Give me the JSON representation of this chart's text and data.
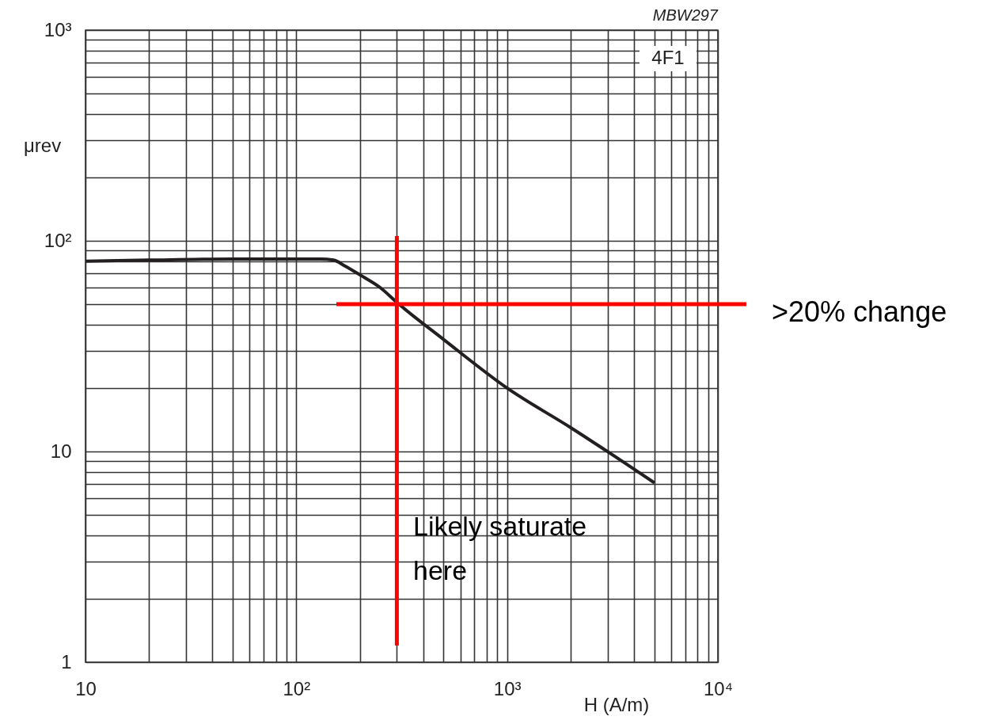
{
  "chart_data": {
    "type": "line",
    "title": "MBW297",
    "xlabel": "H  (A/m)",
    "ylabel": "μrev",
    "log": "xy",
    "grid": true,
    "legend": false,
    "marker": "none",
    "line_style": "solid",
    "xlim": [
      10,
      10000
    ],
    "ylim": [
      1,
      1000
    ],
    "xticks": [
      10,
      {
        "value": 20,
        "label": null
      },
      {
        "value": 30,
        "label": null
      },
      {
        "value": 40,
        "label": null
      },
      {
        "value": 50,
        "label": null
      },
      {
        "value": 60,
        "label": null
      },
      {
        "value": 70,
        "label": null
      },
      {
        "value": 80,
        "label": null
      },
      {
        "value": 90,
        "label": null
      },
      {
        "value": 100,
        "label": "10²"
      },
      {
        "value": 200,
        "label": null
      },
      {
        "value": 300,
        "label": null
      },
      {
        "value": 400,
        "label": null
      },
      {
        "value": 500,
        "label": null
      },
      {
        "value": 600,
        "label": null
      },
      {
        "value": 700,
        "label": null
      },
      {
        "value": 800,
        "label": null
      },
      {
        "value": 900,
        "label": null
      },
      {
        "value": 1000,
        "label": "10³"
      },
      {
        "value": 2000,
        "label": null
      },
      {
        "value": 3000,
        "label": null
      },
      {
        "value": 4000,
        "label": null
      },
      {
        "value": 5000,
        "label": null
      },
      {
        "value": 6000,
        "label": null
      },
      {
        "value": 7000,
        "label": null
      },
      {
        "value": 8000,
        "label": null
      },
      {
        "value": 9000,
        "label": null
      },
      {
        "value": 10000,
        "label": "10⁴"
      }
    ],
    "yticks": [
      1,
      {
        "value": 2,
        "label": null
      },
      {
        "value": 3,
        "label": null
      },
      {
        "value": 4,
        "label": null
      },
      {
        "value": 5,
        "label": null
      },
      {
        "value": 6,
        "label": null
      },
      {
        "value": 7,
        "label": null
      },
      {
        "value": 8,
        "label": null
      },
      {
        "value": 9,
        "label": null
      },
      10,
      {
        "value": 20,
        "label": null
      },
      {
        "value": 30,
        "label": null
      },
      {
        "value": 40,
        "label": null
      },
      {
        "value": 50,
        "label": null
      },
      {
        "value": 60,
        "label": null
      },
      {
        "value": 70,
        "label": null
      },
      {
        "value": 80,
        "label": null
      },
      {
        "value": 90,
        "label": null
      },
      {
        "value": 100,
        "label": "10²"
      },
      {
        "value": 200,
        "label": null
      },
      {
        "value": 300,
        "label": null
      },
      {
        "value": 400,
        "label": null
      },
      {
        "value": 500,
        "label": null
      },
      {
        "value": 600,
        "label": null
      },
      {
        "value": 700,
        "label": null
      },
      {
        "value": 800,
        "label": null
      },
      {
        "value": 900,
        "label": null
      },
      {
        "value": 1000,
        "label": "10³"
      }
    ],
    "series": [
      {
        "color": "#231f20",
        "x": [
          10,
          20,
          50,
          100,
          130,
          150,
          170,
          200,
          250,
          300,
          500,
          1000,
          2000,
          5000
        ],
        "values": [
          80,
          81,
          82,
          82,
          82,
          81,
          76,
          69,
          60,
          51,
          34,
          20,
          13,
          7.1
        ]
      }
    ],
    "ref_lines": [
      {
        "axis": "x",
        "value": 300,
        "color": "#ff0000"
      },
      {
        "axis": "y",
        "value": 50,
        "color": "#ff0000"
      }
    ],
    "annotations": [
      "4F1",
      ">20% change",
      "Likely saturate\nhere"
    ]
  }
}
